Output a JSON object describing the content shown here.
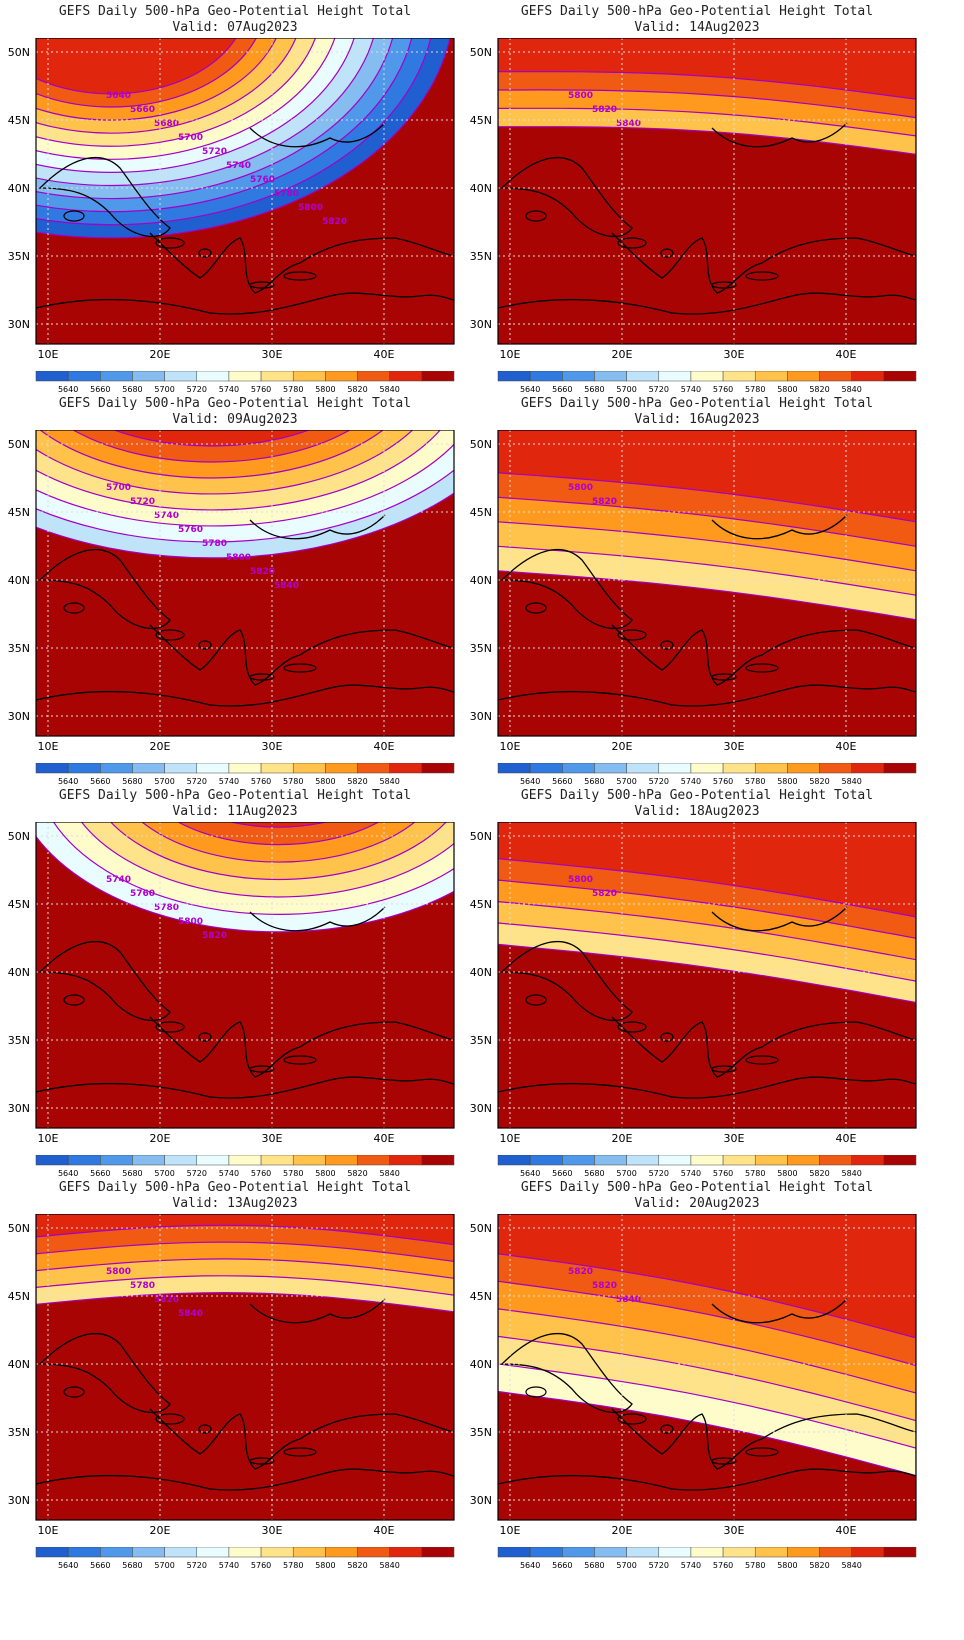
{
  "figure": {
    "axes": {
      "lat_labels": [
        "50N",
        "45N",
        "40N",
        "35N",
        "30N"
      ],
      "lon_labels": [
        "10E",
        "20E",
        "30E",
        "40E"
      ]
    },
    "colorbar": {
      "labels": [
        "5640",
        "5660",
        "5680",
        "5700",
        "5720",
        "5740",
        "5760",
        "5780",
        "5800",
        "5820",
        "5840"
      ],
      "colors": [
        "#1f5fcf",
        "#2f79e0",
        "#4f98ea",
        "#86bdf0",
        "#bfe3f9",
        "#e9fcff",
        "#fffccc",
        "#ffe38a",
        "#ffc24a",
        "#ff9a1e",
        "#f05a12",
        "#e0260c",
        "#a80404"
      ]
    },
    "panels": [
      {
        "title": "GEFS Daily 500-hPa Geo-Potential Height Total",
        "valid": "Valid: 07Aug2023",
        "contour_labels": [
          "5640",
          "5660",
          "5680",
          "5700",
          "5720",
          "5740",
          "5760",
          "5780",
          "5800",
          "5820"
        ]
      },
      {
        "title": "GEFS Daily 500-hPa Geo-Potential Height Total",
        "valid": "Valid: 14Aug2023",
        "contour_labels": [
          "5800",
          "5820",
          "5840"
        ]
      },
      {
        "title": "GEFS Daily 500-hPa Geo-Potential Height Total",
        "valid": "Valid: 09Aug2023",
        "contour_labels": [
          "5700",
          "5720",
          "5740",
          "5760",
          "5780",
          "5800",
          "5820",
          "5840"
        ]
      },
      {
        "title": "GEFS Daily 500-hPa Geo-Potential Height Total",
        "valid": "Valid: 16Aug2023",
        "contour_labels": [
          "5800",
          "5820"
        ]
      },
      {
        "title": "GEFS Daily 500-hPa Geo-Potential Height Total",
        "valid": "Valid: 11Aug2023",
        "contour_labels": [
          "5740",
          "5760",
          "5780",
          "5800",
          "5820"
        ]
      },
      {
        "title": "GEFS Daily 500-hPa Geo-Potential Height Total",
        "valid": "Valid: 18Aug2023",
        "contour_labels": [
          "5800",
          "5820"
        ]
      },
      {
        "title": "GEFS Daily 500-hPa Geo-Potential Height Total",
        "valid": "Valid: 13Aug2023",
        "contour_labels": [
          "5800",
          "5780",
          "5820",
          "5840"
        ]
      },
      {
        "title": "GEFS Daily 500-hPa Geo-Potential Height Total",
        "valid": "Valid: 20Aug2023",
        "contour_labels": [
          "5820",
          "5820",
          "5840"
        ]
      }
    ]
  }
}
